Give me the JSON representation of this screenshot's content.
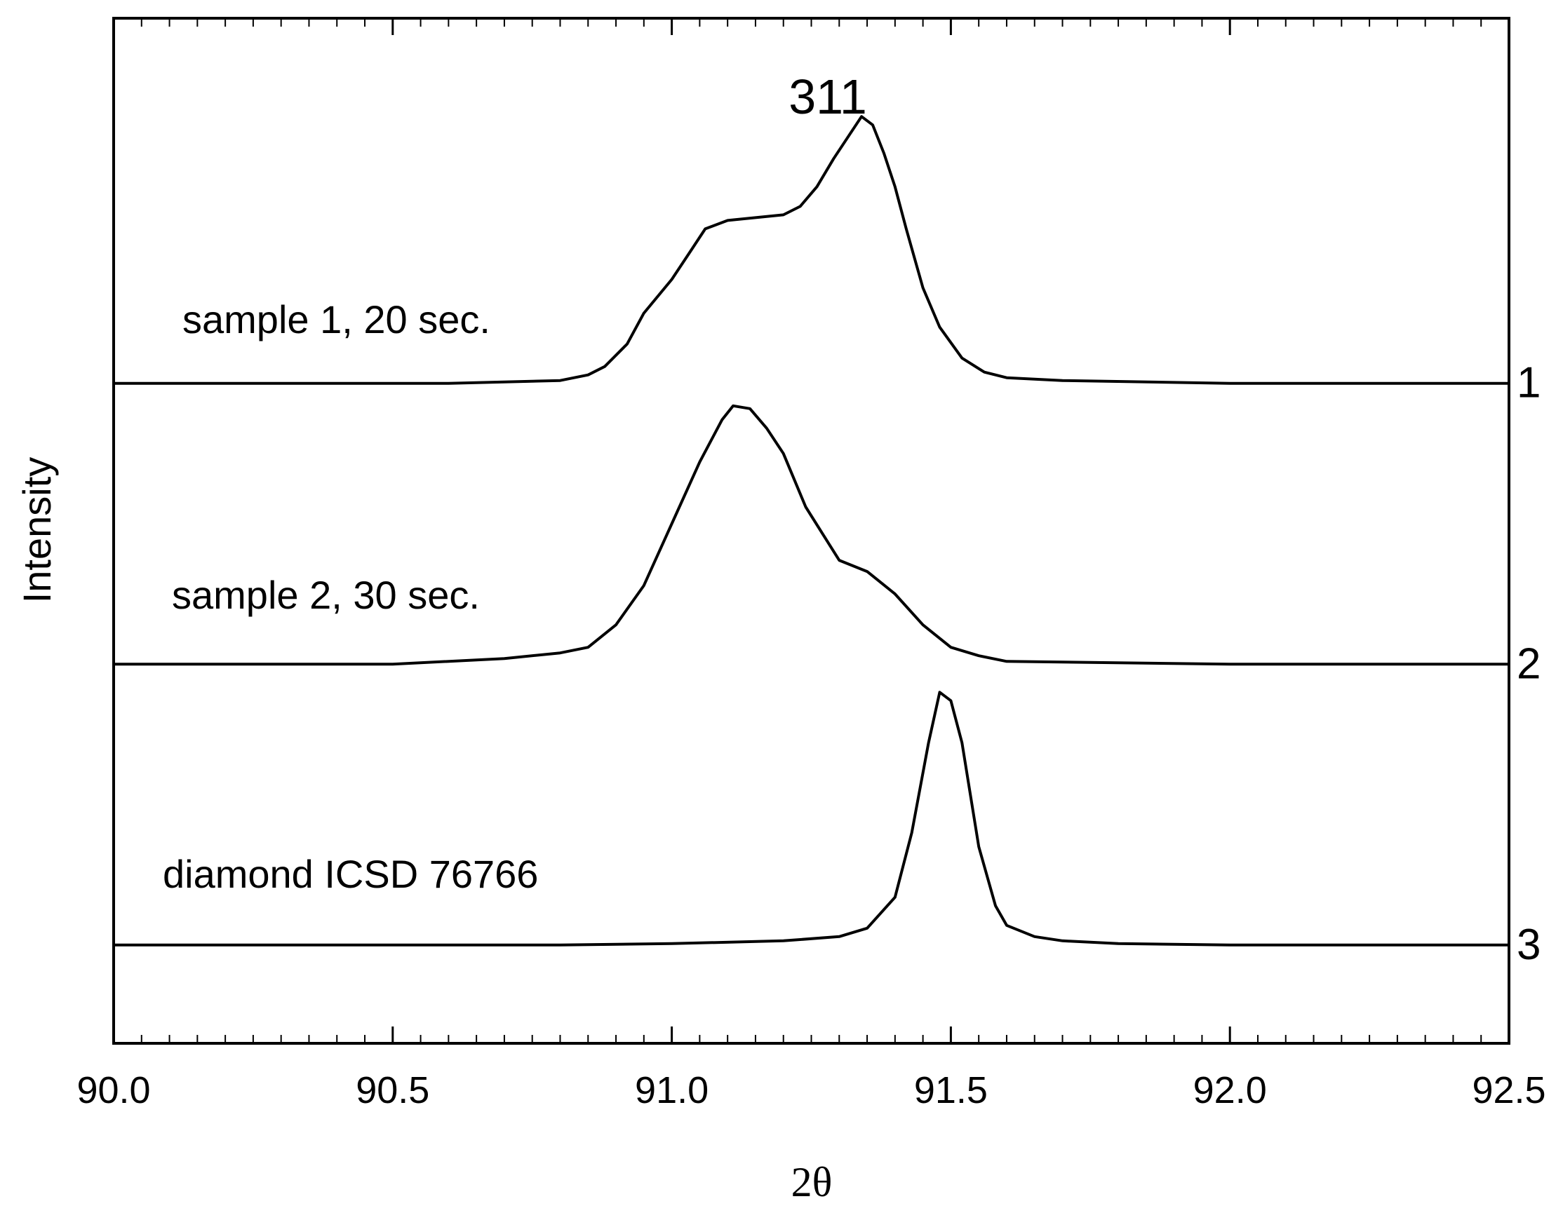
{
  "chart_data": {
    "type": "line",
    "title": "311",
    "xlabel": "2θ",
    "ylabel": "Intensity",
    "xlim": [
      90.0,
      92.5
    ],
    "ylim": [
      -0.35,
      3.3
    ],
    "x_ticks": [
      "90.0",
      "90.5",
      "91.0",
      "91.5",
      "92.0",
      "92.5"
    ],
    "x_minor_step": 0.05,
    "grid": false,
    "line_color": "#000000",
    "series": [
      {
        "name": "sample 1, 20 sec.",
        "offset_label": "1",
        "offset": 2.0,
        "points": [
          [
            90.0,
            0.0
          ],
          [
            90.3,
            0.0
          ],
          [
            90.6,
            0.0
          ],
          [
            90.8,
            0.01
          ],
          [
            90.85,
            0.03
          ],
          [
            90.88,
            0.06
          ],
          [
            90.92,
            0.14
          ],
          [
            90.95,
            0.25
          ],
          [
            91.0,
            0.37
          ],
          [
            91.03,
            0.46
          ],
          [
            91.06,
            0.55
          ],
          [
            91.1,
            0.58
          ],
          [
            91.15,
            0.59
          ],
          [
            91.2,
            0.6
          ],
          [
            91.23,
            0.63
          ],
          [
            91.26,
            0.7
          ],
          [
            91.29,
            0.8
          ],
          [
            91.32,
            0.89
          ],
          [
            91.34,
            0.95
          ],
          [
            91.36,
            0.92
          ],
          [
            91.38,
            0.82
          ],
          [
            91.4,
            0.7
          ],
          [
            91.42,
            0.55
          ],
          [
            91.45,
            0.34
          ],
          [
            91.48,
            0.2
          ],
          [
            91.52,
            0.09
          ],
          [
            91.56,
            0.04
          ],
          [
            91.6,
            0.02
          ],
          [
            91.7,
            0.01
          ],
          [
            92.0,
            0.0
          ],
          [
            92.5,
            0.0
          ]
        ]
      },
      {
        "name": "sample 2, 30 sec.",
        "offset_label": "2",
        "offset": 1.0,
        "points": [
          [
            90.0,
            0.0
          ],
          [
            90.5,
            0.0
          ],
          [
            90.7,
            0.02
          ],
          [
            90.8,
            0.04
          ],
          [
            90.85,
            0.06
          ],
          [
            90.9,
            0.14
          ],
          [
            90.95,
            0.28
          ],
          [
            91.0,
            0.5
          ],
          [
            91.05,
            0.72
          ],
          [
            91.09,
            0.87
          ],
          [
            91.11,
            0.92
          ],
          [
            91.14,
            0.91
          ],
          [
            91.17,
            0.84
          ],
          [
            91.2,
            0.75
          ],
          [
            91.24,
            0.56
          ],
          [
            91.3,
            0.37
          ],
          [
            91.35,
            0.33
          ],
          [
            91.4,
            0.25
          ],
          [
            91.45,
            0.14
          ],
          [
            91.5,
            0.06
          ],
          [
            91.55,
            0.03
          ],
          [
            91.6,
            0.01
          ],
          [
            92.0,
            0.0
          ],
          [
            92.5,
            0.0
          ]
        ]
      },
      {
        "name": "diamond ICSD 76766",
        "offset_label": "3",
        "offset": 0.0,
        "points": [
          [
            90.0,
            0.0
          ],
          [
            90.5,
            0.0
          ],
          [
            90.8,
            0.0
          ],
          [
            91.0,
            0.005
          ],
          [
            91.2,
            0.015
          ],
          [
            91.3,
            0.03
          ],
          [
            91.35,
            0.06
          ],
          [
            91.4,
            0.17
          ],
          [
            91.43,
            0.4
          ],
          [
            91.46,
            0.72
          ],
          [
            91.48,
            0.9
          ],
          [
            91.5,
            0.87
          ],
          [
            91.52,
            0.72
          ],
          [
            91.55,
            0.35
          ],
          [
            91.58,
            0.14
          ],
          [
            91.6,
            0.07
          ],
          [
            91.65,
            0.03
          ],
          [
            91.7,
            0.015
          ],
          [
            91.8,
            0.005
          ],
          [
            92.0,
            0.0
          ],
          [
            92.5,
            0.0
          ]
        ]
      }
    ]
  }
}
